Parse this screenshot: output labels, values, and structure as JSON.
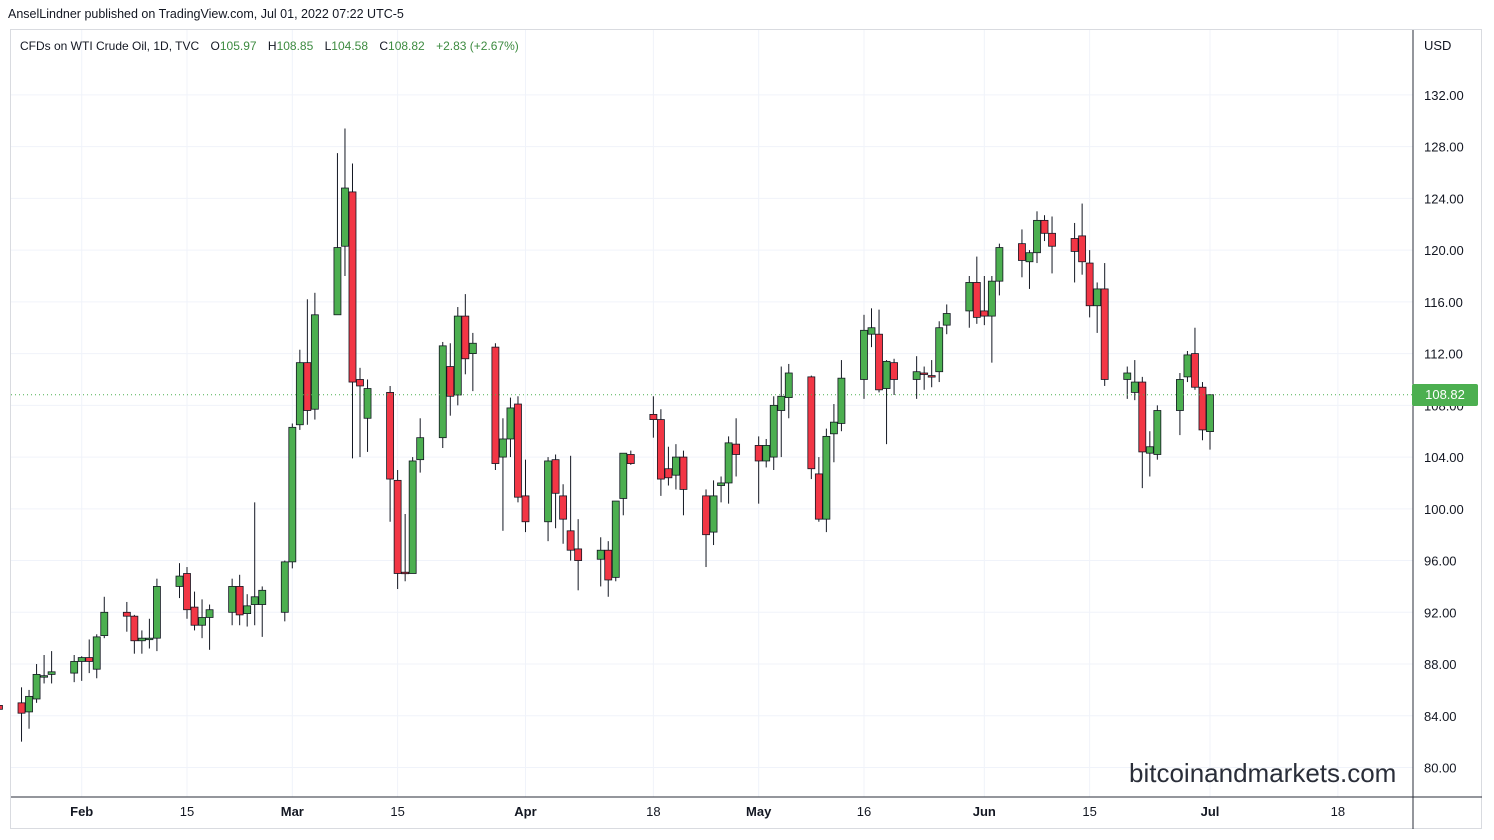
{
  "publisher": "AnselLindner published on TradingView.com, Jul 01, 2022 07:22 UTC-5",
  "legend": {
    "symbol": "CFDs on WTI Crude Oil, 1D, TVC",
    "open_label": "O",
    "open": "105.97",
    "high_label": "H",
    "high": "108.85",
    "low_label": "L",
    "low": "104.58",
    "close_label": "C",
    "close": "108.82",
    "change": "+2.83 (+2.67%)"
  },
  "currency": "USD",
  "last_price": "108.82",
  "watermark": "bitcoinandmarkets.com",
  "colors": {
    "up": "#4caf50",
    "down": "#f23645",
    "wick": "#131722",
    "grid": "#f0f3fa"
  },
  "chart_data": {
    "type": "candlestick",
    "ylim": [
      78,
      136
    ],
    "y_ticks": [
      "80.00",
      "84.00",
      "88.00",
      "92.00",
      "96.00",
      "100.00",
      "104.00",
      "108.00",
      "112.00",
      "116.00",
      "120.00",
      "124.00",
      "128.00",
      "132.00"
    ],
    "x_ticks": [
      {
        "label": "Feb",
        "month": true,
        "date": "2022-02-01"
      },
      {
        "label": "15",
        "month": false,
        "date": "2022-02-15"
      },
      {
        "label": "Mar",
        "month": true,
        "date": "2022-03-01"
      },
      {
        "label": "15",
        "month": false,
        "date": "2022-03-15"
      },
      {
        "label": "Apr",
        "month": true,
        "date": "2022-04-01"
      },
      {
        "label": "18",
        "month": false,
        "date": "2022-04-18"
      },
      {
        "label": "May",
        "month": true,
        "date": "2022-05-02"
      },
      {
        "label": "16",
        "month": false,
        "date": "2022-05-16"
      },
      {
        "label": "Jun",
        "month": true,
        "date": "2022-06-01"
      },
      {
        "label": "15",
        "month": false,
        "date": "2022-06-15"
      },
      {
        "label": "Jul",
        "month": true,
        "date": "2022-07-01"
      },
      {
        "label": "18",
        "month": false,
        "date": "2022-07-18"
      }
    ],
    "candles": [
      {
        "d": "2022-01-20",
        "o": 85.2,
        "h": 86.3,
        "l": 84.0,
        "c": 84.6
      },
      {
        "d": "2022-01-21",
        "o": 84.8,
        "h": 85.8,
        "l": 82.4,
        "c": 84.5
      },
      {
        "d": "2022-01-24",
        "o": 85.0,
        "h": 86.2,
        "l": 82.0,
        "c": 84.2
      },
      {
        "d": "2022-01-25",
        "o": 84.3,
        "h": 86.0,
        "l": 83.0,
        "c": 85.5
      },
      {
        "d": "2022-01-26",
        "o": 85.3,
        "h": 88.0,
        "l": 85.0,
        "c": 87.2
      },
      {
        "d": "2022-01-27",
        "o": 87.0,
        "h": 88.7,
        "l": 86.5,
        "c": 87.1
      },
      {
        "d": "2022-01-28",
        "o": 87.2,
        "h": 89.0,
        "l": 86.5,
        "c": 87.4
      },
      {
        "d": "2022-01-31",
        "o": 87.3,
        "h": 88.7,
        "l": 86.6,
        "c": 88.2
      },
      {
        "d": "2022-02-01",
        "o": 88.2,
        "h": 88.6,
        "l": 86.7,
        "c": 88.5
      },
      {
        "d": "2022-02-02",
        "o": 88.5,
        "h": 89.9,
        "l": 87.3,
        "c": 88.2
      },
      {
        "d": "2022-02-03",
        "o": 87.6,
        "h": 90.3,
        "l": 86.9,
        "c": 90.1
      },
      {
        "d": "2022-02-04",
        "o": 90.2,
        "h": 93.2,
        "l": 90.0,
        "c": 92.0
      },
      {
        "d": "2022-02-07",
        "o": 92.0,
        "h": 92.8,
        "l": 90.5,
        "c": 91.7
      },
      {
        "d": "2022-02-08",
        "o": 91.7,
        "h": 91.8,
        "l": 88.8,
        "c": 89.8
      },
      {
        "d": "2022-02-09",
        "o": 89.8,
        "h": 90.6,
        "l": 88.8,
        "c": 90.0
      },
      {
        "d": "2022-02-10",
        "o": 89.9,
        "h": 91.5,
        "l": 89.2,
        "c": 90.0
      },
      {
        "d": "2022-02-11",
        "o": 90.0,
        "h": 94.6,
        "l": 89.0,
        "c": 94.0
      },
      {
        "d": "2022-02-14",
        "o": 94.0,
        "h": 95.8,
        "l": 93.1,
        "c": 94.8
      },
      {
        "d": "2022-02-15",
        "o": 95.0,
        "h": 95.5,
        "l": 91.5,
        "c": 92.2
      },
      {
        "d": "2022-02-16",
        "o": 92.4,
        "h": 93.6,
        "l": 90.6,
        "c": 91.0
      },
      {
        "d": "2022-02-17",
        "o": 91.0,
        "h": 93.0,
        "l": 90.0,
        "c": 91.6
      },
      {
        "d": "2022-02-18",
        "o": 91.6,
        "h": 92.6,
        "l": 89.1,
        "c": 92.2
      },
      {
        "d": "2022-02-21",
        "o": 92.0,
        "h": 94.6,
        "l": 91.0,
        "c": 94.0
      },
      {
        "d": "2022-02-22",
        "o": 94.0,
        "h": 94.9,
        "l": 91.0,
        "c": 91.8
      },
      {
        "d": "2022-02-23",
        "o": 91.9,
        "h": 93.4,
        "l": 90.9,
        "c": 92.5
      },
      {
        "d": "2022-02-24",
        "o": 92.6,
        "h": 100.5,
        "l": 91.0,
        "c": 93.2
      },
      {
        "d": "2022-02-25",
        "o": 92.6,
        "h": 94.0,
        "l": 90.1,
        "c": 93.7
      },
      {
        "d": "2022-02-28",
        "o": 92.0,
        "h": 96.0,
        "l": 91.3,
        "c": 95.9
      },
      {
        "d": "2022-03-01",
        "o": 95.9,
        "h": 106.6,
        "l": 95.4,
        "c": 106.3
      },
      {
        "d": "2022-03-02",
        "o": 106.5,
        "h": 112.3,
        "l": 106.1,
        "c": 111.3
      },
      {
        "d": "2022-03-03",
        "o": 111.3,
        "h": 116.2,
        "l": 106.5,
        "c": 107.6
      },
      {
        "d": "2022-03-04",
        "o": 107.7,
        "h": 116.7,
        "l": 106.9,
        "c": 115.0
      },
      {
        "d": "2022-03-07",
        "o": 115.0,
        "h": 127.5,
        "l": 115.0,
        "c": 120.2
      },
      {
        "d": "2022-03-08",
        "o": 120.3,
        "h": 129.4,
        "l": 118.0,
        "c": 124.8
      },
      {
        "d": "2022-03-09",
        "o": 124.5,
        "h": 126.7,
        "l": 103.9,
        "c": 109.8
      },
      {
        "d": "2022-03-10",
        "o": 110.0,
        "h": 110.9,
        "l": 104.0,
        "c": 109.5
      },
      {
        "d": "2022-03-11",
        "o": 107.0,
        "h": 110.0,
        "l": 104.4,
        "c": 109.3
      },
      {
        "d": "2022-03-14",
        "o": 109.0,
        "h": 109.5,
        "l": 99.0,
        "c": 102.3
      },
      {
        "d": "2022-03-15",
        "o": 102.2,
        "h": 103.0,
        "l": 93.8,
        "c": 95.0
      },
      {
        "d": "2022-03-16",
        "o": 95.1,
        "h": 99.6,
        "l": 94.4,
        "c": 95.0
      },
      {
        "d": "2022-03-17",
        "o": 95.0,
        "h": 104.0,
        "l": 95.0,
        "c": 103.7
      },
      {
        "d": "2022-03-18",
        "o": 103.8,
        "h": 107.0,
        "l": 102.8,
        "c": 105.5
      },
      {
        "d": "2022-03-21",
        "o": 105.5,
        "h": 112.9,
        "l": 104.7,
        "c": 112.6
      },
      {
        "d": "2022-03-22",
        "o": 111.0,
        "h": 112.8,
        "l": 107.2,
        "c": 108.7
      },
      {
        "d": "2022-03-23",
        "o": 108.8,
        "h": 115.6,
        "l": 108.0,
        "c": 114.9
      },
      {
        "d": "2022-03-24",
        "o": 114.9,
        "h": 116.6,
        "l": 110.4,
        "c": 111.6
      },
      {
        "d": "2022-03-25",
        "o": 112.0,
        "h": 113.6,
        "l": 109.1,
        "c": 112.8
      },
      {
        "d": "2022-03-28",
        "o": 112.5,
        "h": 112.8,
        "l": 103.0,
        "c": 103.5
      },
      {
        "d": "2022-03-29",
        "o": 104.0,
        "h": 107.0,
        "l": 98.3,
        "c": 105.4
      },
      {
        "d": "2022-03-30",
        "o": 105.4,
        "h": 108.6,
        "l": 104.0,
        "c": 107.8
      },
      {
        "d": "2022-03-31",
        "o": 108.1,
        "h": 108.7,
        "l": 100.5,
        "c": 100.9
      },
      {
        "d": "2022-04-01",
        "o": 101.0,
        "h": 103.8,
        "l": 98.2,
        "c": 99.0
      },
      {
        "d": "2022-04-04",
        "o": 99.0,
        "h": 104.0,
        "l": 97.5,
        "c": 103.7
      },
      {
        "d": "2022-04-05",
        "o": 103.8,
        "h": 104.2,
        "l": 98.5,
        "c": 101.2
      },
      {
        "d": "2022-04-06",
        "o": 101.0,
        "h": 101.9,
        "l": 97.3,
        "c": 99.2
      },
      {
        "d": "2022-04-07",
        "o": 98.3,
        "h": 104.1,
        "l": 96.0,
        "c": 96.8
      },
      {
        "d": "2022-04-08",
        "o": 96.9,
        "h": 99.2,
        "l": 93.7,
        "c": 96.0
      },
      {
        "d": "2022-04-11",
        "o": 96.1,
        "h": 97.8,
        "l": 94.0,
        "c": 96.8
      },
      {
        "d": "2022-04-12",
        "o": 96.8,
        "h": 97.5,
        "l": 93.2,
        "c": 94.5
      },
      {
        "d": "2022-04-13",
        "o": 94.7,
        "h": 100.5,
        "l": 94.4,
        "c": 100.6
      },
      {
        "d": "2022-04-14",
        "o": 100.8,
        "h": 104.2,
        "l": 99.5,
        "c": 104.3
      },
      {
        "d": "2022-04-15",
        "o": 104.2,
        "h": 104.5,
        "l": 103.4,
        "c": 103.5
      },
      {
        "d": "2022-04-18",
        "o": 107.3,
        "h": 108.7,
        "l": 105.5,
        "c": 106.9
      },
      {
        "d": "2022-04-19",
        "o": 106.9,
        "h": 107.7,
        "l": 101.0,
        "c": 102.3
      },
      {
        "d": "2022-04-20",
        "o": 103.1,
        "h": 104.8,
        "l": 101.8,
        "c": 102.4
      },
      {
        "d": "2022-04-21",
        "o": 102.6,
        "h": 105.0,
        "l": 101.5,
        "c": 104.0
      },
      {
        "d": "2022-04-22",
        "o": 104.0,
        "h": 104.5,
        "l": 99.5,
        "c": 101.5
      },
      {
        "d": "2022-04-25",
        "o": 101.0,
        "h": 101.5,
        "l": 95.5,
        "c": 98.0
      },
      {
        "d": "2022-04-26",
        "o": 98.2,
        "h": 102.2,
        "l": 97.2,
        "c": 101.0
      },
      {
        "d": "2022-04-27",
        "o": 101.8,
        "h": 102.5,
        "l": 100.5,
        "c": 102.0
      },
      {
        "d": "2022-04-28",
        "o": 102.0,
        "h": 105.6,
        "l": 100.4,
        "c": 105.1
      },
      {
        "d": "2022-04-29",
        "o": 105.0,
        "h": 107.0,
        "l": 102.5,
        "c": 104.2
      },
      {
        "d": "2022-05-02",
        "o": 104.9,
        "h": 105.6,
        "l": 100.4,
        "c": 103.7
      },
      {
        "d": "2022-05-03",
        "o": 103.7,
        "h": 105.4,
        "l": 103.2,
        "c": 104.9
      },
      {
        "d": "2022-05-04",
        "o": 104.0,
        "h": 108.7,
        "l": 103.0,
        "c": 108.0
      },
      {
        "d": "2022-05-05",
        "o": 107.6,
        "h": 111.0,
        "l": 104.0,
        "c": 108.7
      },
      {
        "d": "2022-05-06",
        "o": 108.6,
        "h": 111.2,
        "l": 107.0,
        "c": 110.5
      },
      {
        "d": "2022-05-09",
        "o": 110.2,
        "h": 110.3,
        "l": 102.3,
        "c": 103.1
      },
      {
        "d": "2022-05-10",
        "o": 102.7,
        "h": 104.0,
        "l": 99.0,
        "c": 99.2
      },
      {
        "d": "2022-05-11",
        "o": 99.2,
        "h": 106.2,
        "l": 98.2,
        "c": 105.6
      },
      {
        "d": "2022-05-12",
        "o": 105.8,
        "h": 108.1,
        "l": 103.6,
        "c": 106.7
      },
      {
        "d": "2022-05-13",
        "o": 106.6,
        "h": 111.5,
        "l": 106.0,
        "c": 110.1
      },
      {
        "d": "2022-05-16",
        "o": 110.0,
        "h": 115.0,
        "l": 108.5,
        "c": 113.8
      },
      {
        "d": "2022-05-17",
        "o": 113.5,
        "h": 115.5,
        "l": 112.5,
        "c": 114.0
      },
      {
        "d": "2022-05-18",
        "o": 113.5,
        "h": 115.4,
        "l": 109.0,
        "c": 109.2
      },
      {
        "d": "2022-05-19",
        "o": 109.3,
        "h": 111.5,
        "l": 105.0,
        "c": 111.4
      },
      {
        "d": "2022-05-20",
        "o": 111.3,
        "h": 111.6,
        "l": 108.8,
        "c": 110.0
      },
      {
        "d": "2022-05-23",
        "o": 110.0,
        "h": 111.8,
        "l": 108.5,
        "c": 110.6
      },
      {
        "d": "2022-05-24",
        "o": 110.5,
        "h": 111.0,
        "l": 109.2,
        "c": 110.4
      },
      {
        "d": "2022-05-25",
        "o": 110.3,
        "h": 111.5,
        "l": 109.4,
        "c": 110.2
      },
      {
        "d": "2022-05-26",
        "o": 110.6,
        "h": 114.5,
        "l": 109.8,
        "c": 114.0
      },
      {
        "d": "2022-05-27",
        "o": 114.2,
        "h": 115.8,
        "l": 113.5,
        "c": 115.1
      },
      {
        "d": "2022-05-30",
        "o": 115.3,
        "h": 118.0,
        "l": 114.0,
        "c": 117.5
      },
      {
        "d": "2022-05-31",
        "o": 117.5,
        "h": 119.5,
        "l": 114.3,
        "c": 114.8
      },
      {
        "d": "2022-06-01",
        "o": 115.3,
        "h": 118.0,
        "l": 114.2,
        "c": 114.9
      },
      {
        "d": "2022-06-02",
        "o": 114.9,
        "h": 118.0,
        "l": 111.3,
        "c": 117.6
      },
      {
        "d": "2022-06-03",
        "o": 117.6,
        "h": 120.5,
        "l": 116.5,
        "c": 120.2
      },
      {
        "d": "2022-06-06",
        "o": 120.5,
        "h": 121.6,
        "l": 117.9,
        "c": 119.2
      },
      {
        "d": "2022-06-07",
        "o": 119.1,
        "h": 120.0,
        "l": 117.0,
        "c": 119.8
      },
      {
        "d": "2022-06-08",
        "o": 119.8,
        "h": 123.0,
        "l": 119.0,
        "c": 122.3
      },
      {
        "d": "2022-06-09",
        "o": 122.3,
        "h": 122.7,
        "l": 120.7,
        "c": 121.3
      },
      {
        "d": "2022-06-10",
        "o": 121.3,
        "h": 122.6,
        "l": 118.2,
        "c": 120.3
      },
      {
        "d": "2022-06-13",
        "o": 120.9,
        "h": 122.1,
        "l": 117.5,
        "c": 119.9
      },
      {
        "d": "2022-06-14",
        "o": 121.1,
        "h": 123.6,
        "l": 118.1,
        "c": 119.1
      },
      {
        "d": "2022-06-15",
        "o": 119.0,
        "h": 120.0,
        "l": 114.8,
        "c": 115.7
      },
      {
        "d": "2022-06-16",
        "o": 115.7,
        "h": 117.5,
        "l": 113.6,
        "c": 117.0
      },
      {
        "d": "2022-06-17",
        "o": 117.0,
        "h": 119.0,
        "l": 109.5,
        "c": 110.0
      },
      {
        "d": "2022-06-20",
        "o": 110.0,
        "h": 111.0,
        "l": 108.5,
        "c": 110.5
      },
      {
        "d": "2022-06-21",
        "o": 109.0,
        "h": 111.5,
        "l": 108.4,
        "c": 109.8
      },
      {
        "d": "2022-06-22",
        "o": 109.8,
        "h": 110.2,
        "l": 101.6,
        "c": 104.4
      },
      {
        "d": "2022-06-23",
        "o": 104.3,
        "h": 106.0,
        "l": 102.5,
        "c": 104.8
      },
      {
        "d": "2022-06-24",
        "o": 104.2,
        "h": 108.0,
        "l": 103.8,
        "c": 107.6
      },
      {
        "d": "2022-06-27",
        "o": 107.6,
        "h": 110.5,
        "l": 105.7,
        "c": 110.0
      },
      {
        "d": "2022-06-28",
        "o": 110.2,
        "h": 112.2,
        "l": 109.8,
        "c": 111.9
      },
      {
        "d": "2022-06-29",
        "o": 112.0,
        "h": 114.0,
        "l": 109.2,
        "c": 109.4
      },
      {
        "d": "2022-06-30",
        "o": 109.4,
        "h": 109.8,
        "l": 105.3,
        "c": 106.1
      },
      {
        "d": "2022-07-01",
        "o": 105.97,
        "h": 108.85,
        "l": 104.58,
        "c": 108.82
      }
    ]
  }
}
